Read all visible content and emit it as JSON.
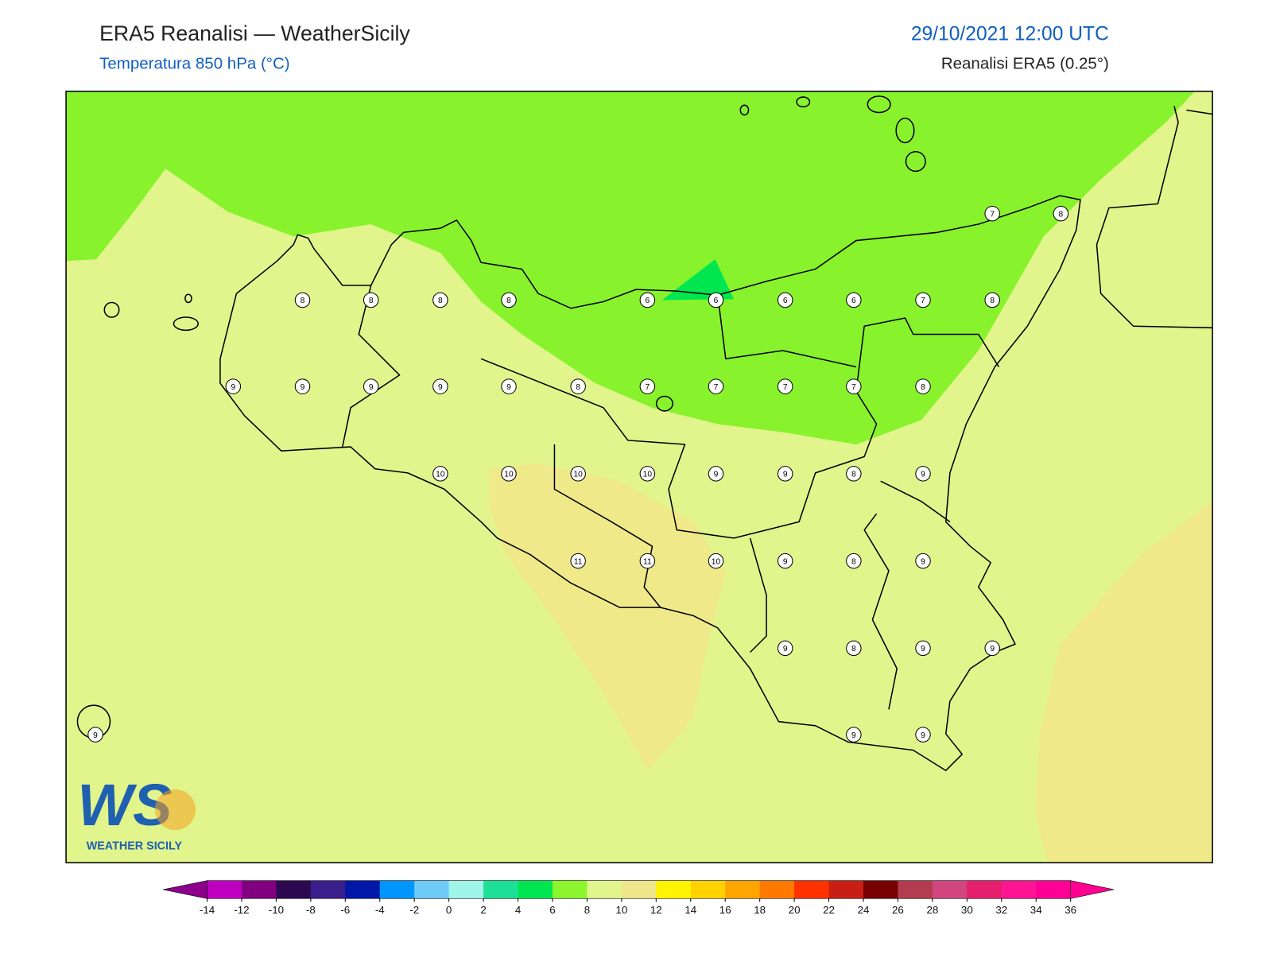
{
  "header": {
    "title": "ERA5 Reanalisi — WeatherSicily",
    "subtitle": "Temperatura 850 hPa (°C)",
    "date": "29/10/2021 12:00 UTC",
    "source": "Reanalisi ERA5 (0.25°)"
  },
  "map": {
    "stations": [
      8,
      8,
      8,
      8,
      6,
      6,
      6,
      6,
      7,
      8,
      7,
      8,
      9,
      9,
      9,
      9,
      9,
      8,
      7,
      7,
      7,
      7,
      8,
      10,
      10,
      10,
      10,
      9,
      9,
      8,
      9,
      11,
      11,
      10,
      9,
      8,
      9,
      9,
      8,
      9,
      9,
      9,
      9,
      9
    ]
  },
  "logo": {
    "mark": "WS",
    "name": "WEATHER SICILY"
  },
  "colorbar": {
    "ticks": [
      -14,
      -12,
      -10,
      -8,
      -6,
      -4,
      -2,
      0,
      2,
      4,
      6,
      8,
      10,
      12,
      14,
      16,
      18,
      20,
      22,
      24,
      26,
      28,
      30,
      32,
      34,
      36
    ],
    "under": "#8c008c",
    "over": "#ff0090",
    "colors": [
      "#c000c0",
      "#800080",
      "#2d0a50",
      "#3a1e8c",
      "#0018a8",
      "#0096ff",
      "#6ecbf5",
      "#9ef5e8",
      "#1de096",
      "#00e650",
      "#8cf52d",
      "#e1f58c",
      "#f0e68c",
      "#fff500",
      "#ffd200",
      "#ffa500",
      "#ff7800",
      "#ff3200",
      "#c81e14",
      "#780000",
      "#b43c50",
      "#d24680",
      "#e61e6e",
      "#ff1493",
      "#ff0096"
    ]
  }
}
